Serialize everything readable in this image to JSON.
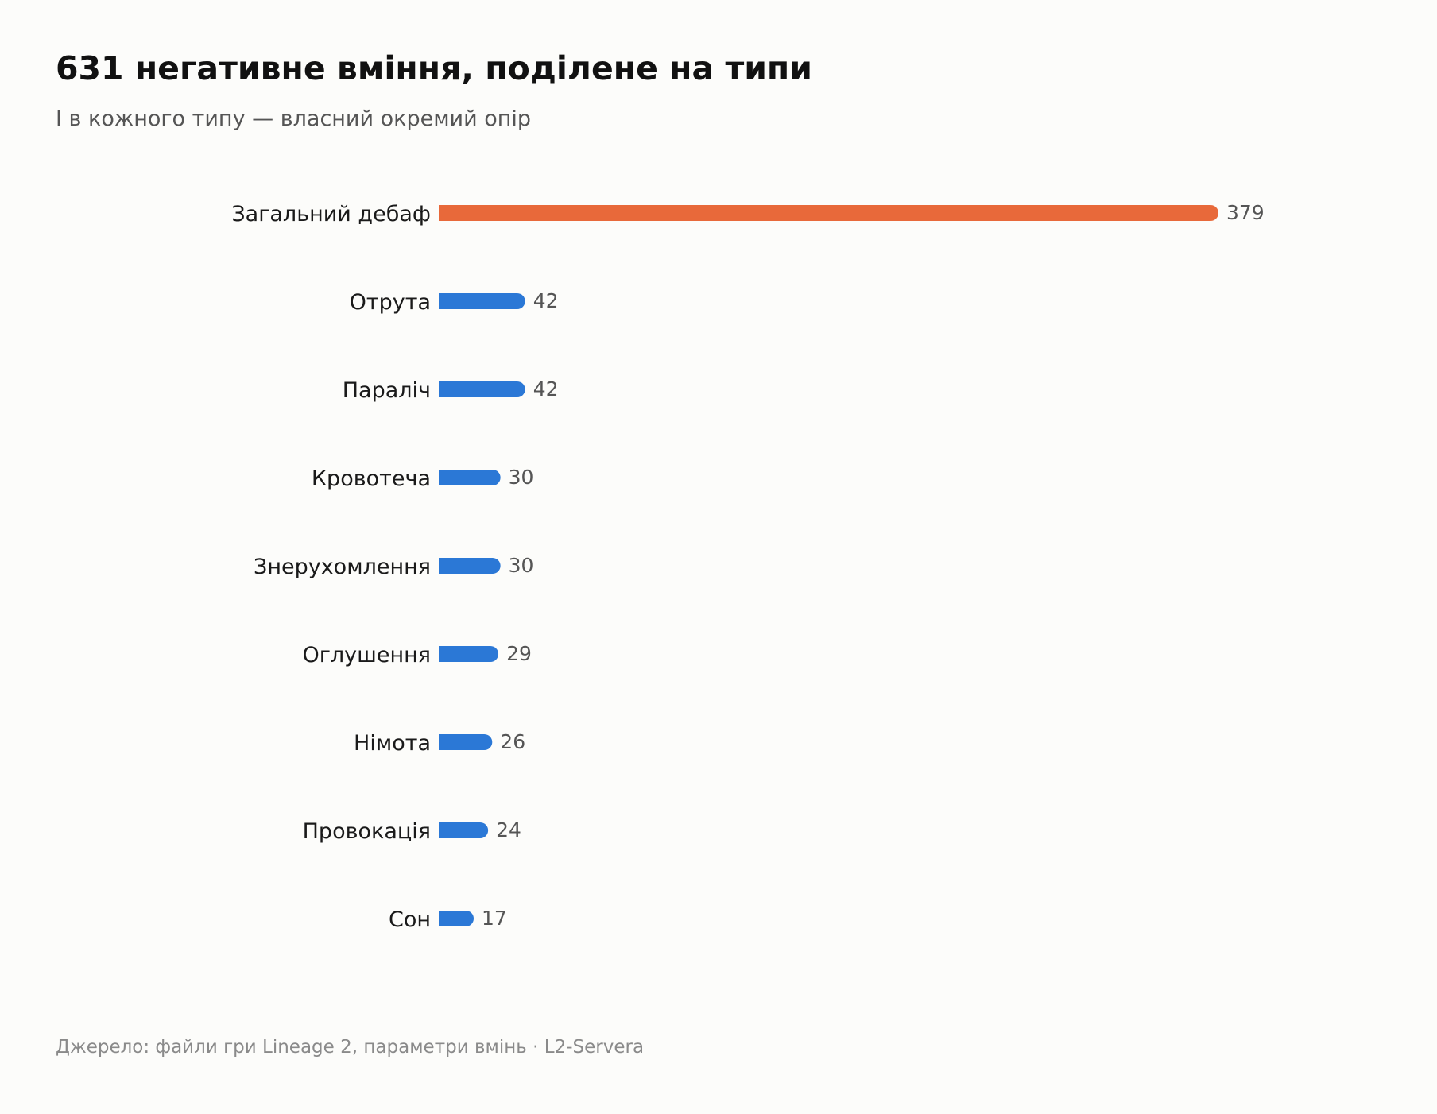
{
  "header": {
    "title": "631 негативне вміння, поділене на типи",
    "subtitle": "І в кожного типу — власний окремий опір"
  },
  "footer": {
    "source": "Джерело: файли гри Lineage 2, параметри вмінь · L2-Servera"
  },
  "colors": {
    "highlight": "#e8693a",
    "default": "#2b78d6"
  },
  "chart_data": {
    "type": "bar",
    "orientation": "horizontal",
    "categories": [
      "Загальний дебаф",
      "Отрута",
      "Параліч",
      "Кровотеча",
      "Знерухомлення",
      "Оглушення",
      "Німота",
      "Провокація",
      "Сон"
    ],
    "values": [
      379,
      42,
      42,
      30,
      30,
      29,
      26,
      24,
      17
    ],
    "highlight_index": 0,
    "data_labels": true,
    "grid": false,
    "xlim": [
      0,
      379
    ]
  }
}
